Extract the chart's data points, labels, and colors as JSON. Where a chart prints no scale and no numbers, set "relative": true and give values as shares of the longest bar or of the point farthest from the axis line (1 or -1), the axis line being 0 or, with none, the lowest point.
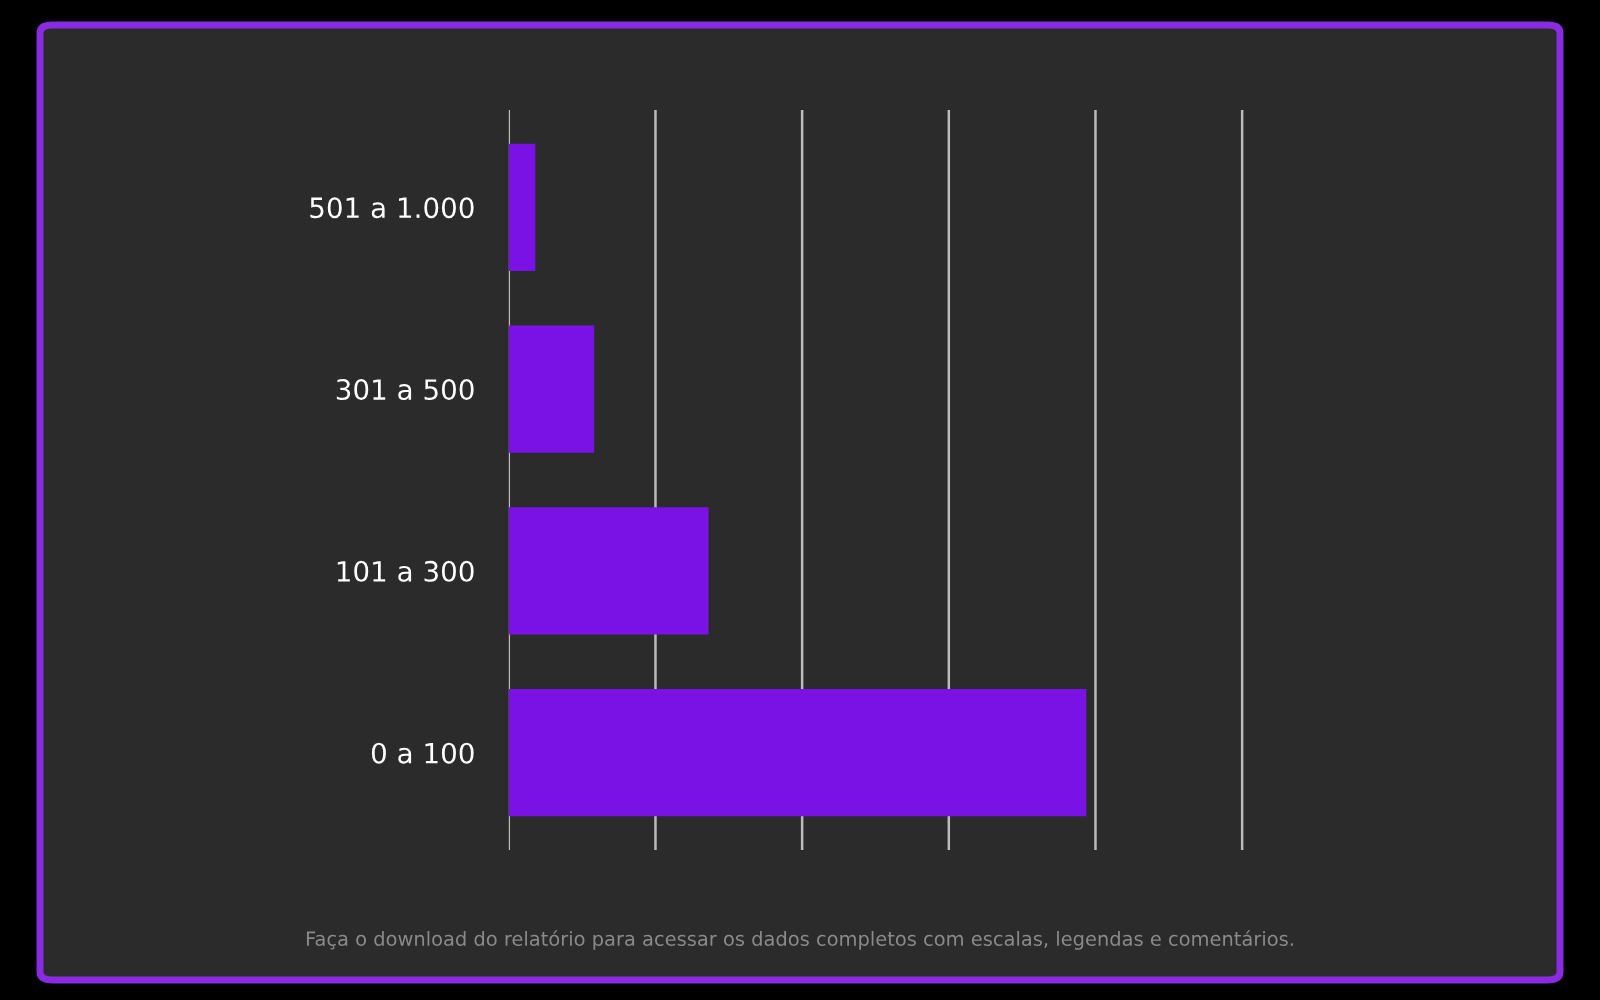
{
  "chart_data": {
    "type": "bar",
    "orientation": "horizontal",
    "relative": true,
    "categories": [
      "501 a 1.000",
      "301 a 500",
      "101 a 300",
      "0 a 100"
    ],
    "values": [
      0.046,
      0.148,
      0.346,
      1
    ],
    "color": "#7a12e6",
    "grid": "x",
    "annotations": [
      "Faça o download do relatório para acessar os dados completos com escalas, legendas e comentários."
    ]
  }
}
